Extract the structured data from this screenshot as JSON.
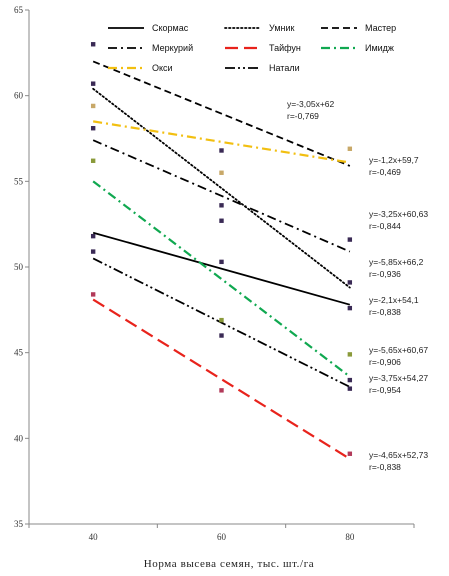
{
  "chart_data": {
    "type": "line",
    "xlabel": "Норма высева семян, тыс. шт./га",
    "ylabel": "",
    "x": [
      40,
      60,
      80
    ],
    "xlim": [
      30,
      90
    ],
    "ylim": [
      35,
      65
    ],
    "x_ticks": [
      "40",
      "60",
      "80"
    ],
    "y_ticks": [
      "35",
      "40",
      "45",
      "50",
      "55",
      "60",
      "65"
    ],
    "grid": false,
    "legend_position": "top",
    "series": [
      {
        "name": "Скормас",
        "color": "#000000",
        "dash": "solid",
        "points": [
          51.8,
          50.3,
          47.6
        ],
        "fit": [
          52,
          47.8
        ]
      },
      {
        "name": "Умник",
        "color": "#000000",
        "dash": "dotted",
        "points": [
          60.7,
          56.8,
          49.1
        ],
        "fit": [
          60.4,
          48.8
        ]
      },
      {
        "name": "Мастер",
        "color": "#000000",
        "dash": "dash",
        "points": [
          63.0,
          53.6,
          51.6
        ],
        "fit": [
          62.0,
          55.9
        ]
      },
      {
        "name": "Меркурий",
        "color": "#000000",
        "dash": "dashdot",
        "points": [
          58.1,
          52.7,
          43.4
        ],
        "fit": [
          57.4,
          50.9
        ]
      },
      {
        "name": "Тайфун",
        "color": "#e8231c",
        "dash": "longdash",
        "points": [
          48.4,
          42.8,
          39.1
        ],
        "fit": [
          48.1,
          38.8
        ]
      },
      {
        "name": "Имидж",
        "color": "#10a850",
        "dash": "dashdot",
        "points": [
          56.2,
          46.9,
          44.9
        ],
        "fit": [
          55.0,
          43.6
        ]
      },
      {
        "name": "Окси",
        "color": "#f2bf10",
        "dash": "dashdot",
        "points": [
          59.4,
          55.5,
          56.9
        ],
        "fit": [
          58.5,
          56.1
        ]
      },
      {
        "name": "Натали",
        "color": "#000000",
        "dash": "dashdotdot",
        "points": [
          50.9,
          46.0,
          42.9
        ],
        "fit": [
          50.5,
          43.0
        ]
      }
    ],
    "annotations": [
      {
        "eq": "y=-3,05x+62",
        "r": "r=-0,769"
      },
      {
        "eq": "y=-1,2x+59,7",
        "r": "r=-0,469"
      },
      {
        "eq": "y=-3,25x+60,63",
        "r": "r=-0,844"
      },
      {
        "eq": "y=-5,85x+66,2",
        "r": "r=-0,936"
      },
      {
        "eq": "y=-2,1x+54,1",
        "r": "r=-0,838"
      },
      {
        "eq": "y=-5,65x+60,67",
        "r": "r=-0,906"
      },
      {
        "eq": "y=-3,75x+54,27",
        "r": "r=-0,954"
      },
      {
        "eq": "y=-4,65x+52,73",
        "r": "r=-0,838"
      }
    ]
  }
}
